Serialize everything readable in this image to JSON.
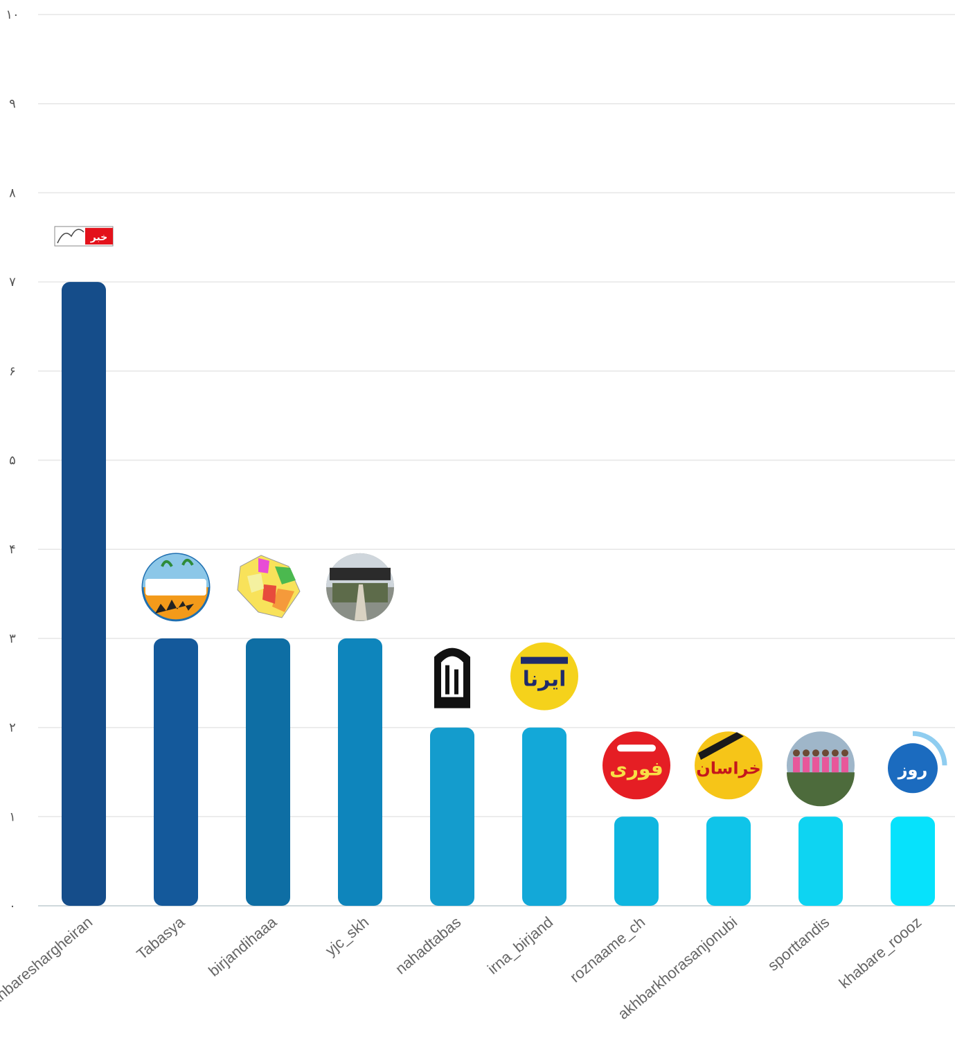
{
  "chart_data": {
    "type": "bar",
    "title": "",
    "xlabel": "",
    "ylabel": "",
    "ylim": [
      0,
      10
    ],
    "y_ticks": [
      0,
      1,
      2,
      3,
      4,
      5,
      6,
      7,
      8,
      9,
      10
    ],
    "y_tick_labels": [
      "۰",
      "۱",
      "۲",
      "۳",
      "۴",
      "۵",
      "۶",
      "۷",
      "۸",
      "۹",
      "۱۰"
    ],
    "grid": true,
    "categories": [
      "akhbareshargheiran",
      "Tabasya",
      "birjandihaaa",
      "yjc_skh",
      "nahadtabas",
      "irna_birjand",
      "roznaame_ch",
      "akhbarkhorasanjonubi",
      "sporttandis",
      "khabare_roooz"
    ],
    "values": [
      7,
      3,
      3,
      3,
      2,
      2,
      1,
      1,
      1,
      1
    ],
    "bar_colors": [
      "#154d8a",
      "#14599b",
      "#0e6ea4",
      "#0e85bc",
      "#149ccd",
      "#13a8d8",
      "#0fb6e0",
      "#0fc4e9",
      "#0ed4f2",
      "#06e2fc"
    ],
    "bar_icons": [
      "khabar-shargh-logo-icon",
      "tabasya-avatar-icon",
      "south-khorasan-map-icon",
      "yjc-club-photo-icon",
      "nahad-emblem-icon",
      "irna-logo-icon",
      "fori-mohem-logo-icon",
      "akhbar-khorasan-logo-icon",
      "team-photo-icon",
      "khabar-rooz-logo-icon"
    ]
  }
}
